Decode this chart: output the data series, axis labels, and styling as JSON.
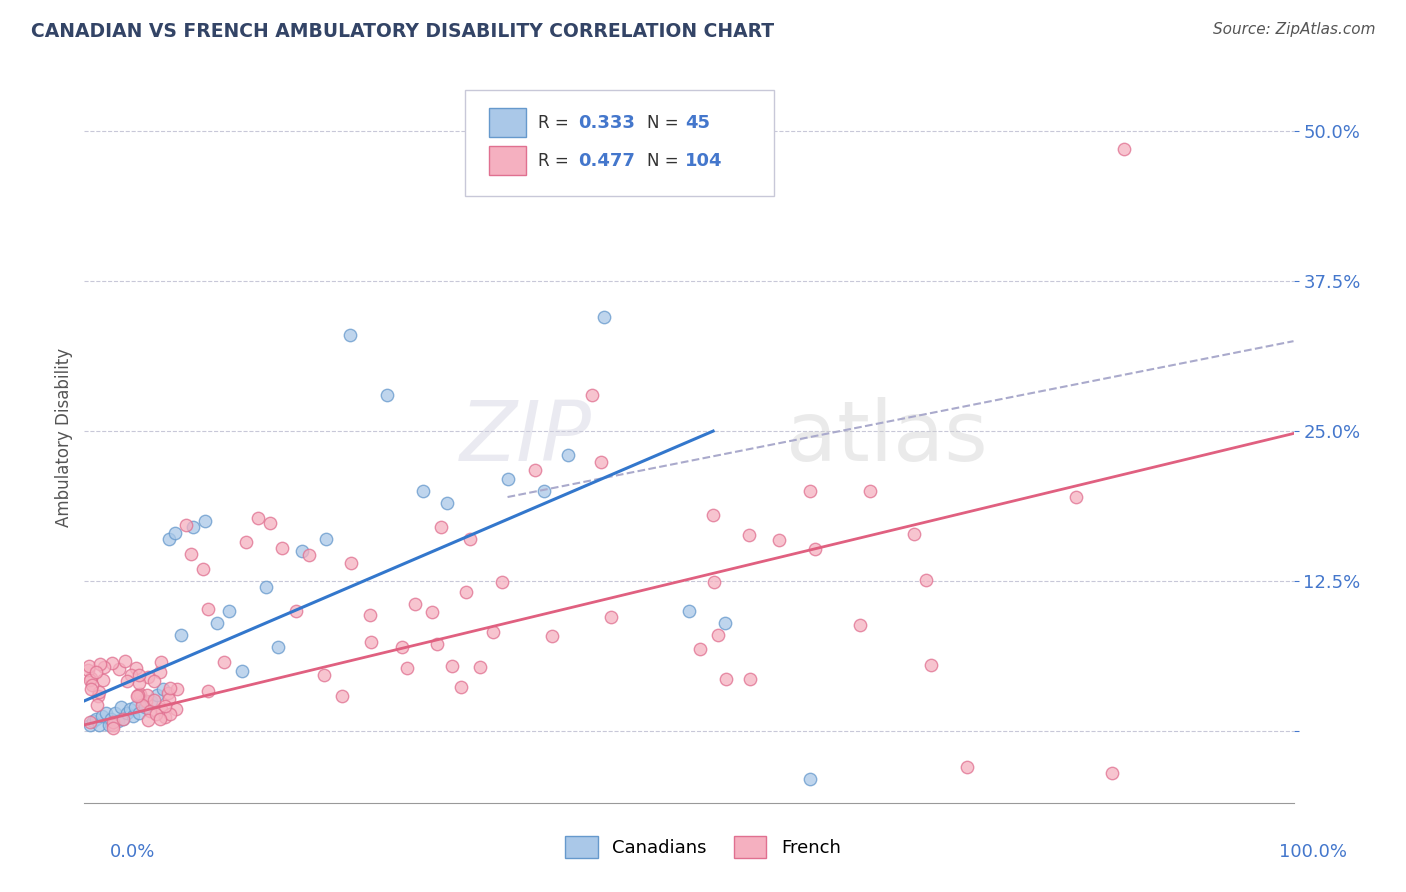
{
  "title": "CANADIAN VS FRENCH AMBULATORY DISABILITY CORRELATION CHART",
  "source": "Source: ZipAtlas.com",
  "ylabel": "Ambulatory Disability",
  "xlim": [
    0.0,
    1.0
  ],
  "ylim": [
    -0.06,
    0.55
  ],
  "yticks": [
    0.0,
    0.125,
    0.25,
    0.375,
    0.5
  ],
  "ytick_labels": [
    "",
    "12.5%",
    "25.0%",
    "37.5%",
    "50.0%"
  ],
  "xtick_labels_left": "0.0%",
  "xtick_labels_right": "100.0%",
  "canadian_fill": "#aac8e8",
  "canadian_edge": "#6699cc",
  "french_fill": "#f5b0c0",
  "french_edge": "#e07090",
  "trend_canadian_color": "#3377cc",
  "trend_french_color": "#e06080",
  "trend_dashed_color": "#aaaacc",
  "R_canadian": "0.333",
  "N_canadian": "45",
  "R_french": "0.477",
  "N_french": "104",
  "legend_labels": [
    "Canadians",
    "French"
  ],
  "background_color": "#ffffff",
  "grid_color": "#c8c8d8",
  "watermark_zip": "ZIP",
  "watermark_atlas": "atlas",
  "tick_color": "#4477cc",
  "title_color": "#334466",
  "source_color": "#555555",
  "ylabel_color": "#555555"
}
